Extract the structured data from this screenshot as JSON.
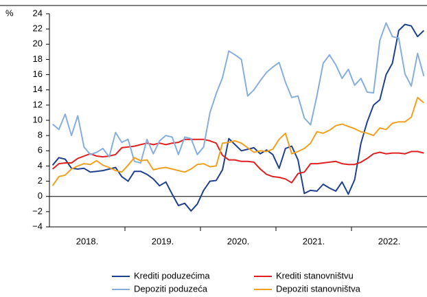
{
  "chart_data": {
    "type": "line",
    "y_label": "%",
    "years": [
      "2018.",
      "2019.",
      "2020.",
      "2021.",
      "2022."
    ],
    "ylim": [
      -4,
      24
    ],
    "yticks": [
      {
        "value": -4,
        "label": "−4"
      },
      {
        "value": -2,
        "label": "−2"
      },
      0,
      2,
      4,
      6,
      8,
      10,
      12,
      14,
      16,
      18,
      20,
      22,
      24
    ],
    "series": [
      {
        "name": "Krediti poduzećima",
        "color": "#1f3f8f",
        "values": [
          4.1,
          5.1,
          4.9,
          3.7,
          3.6,
          3.7,
          3.2,
          3.3,
          3.4,
          3.6,
          3.8,
          2.6,
          2.0,
          3.3,
          3.3,
          2.9,
          2.3,
          1.4,
          1.9,
          0.3,
          -1.2,
          -0.9,
          -1.9,
          -1.0,
          0.8,
          2.0,
          2.1,
          3.5,
          7.6,
          6.8,
          6.0,
          6.2,
          6.4,
          5.6,
          6.1,
          5.5,
          3.7,
          6.3,
          6.6,
          4.8,
          0.4,
          0.8,
          0.7,
          1.6,
          1.1,
          0.7,
          1.9,
          0.3,
          2.2,
          7.0,
          9.8,
          12.0,
          12.7,
          16.0,
          17.5,
          21.8,
          22.6,
          22.4,
          21.0,
          21.8
        ]
      },
      {
        "name": "Krediti stanovništvu",
        "color": "#e02020",
        "values": [
          3.6,
          4.3,
          4.4,
          4.4,
          5.0,
          5.3,
          5.6,
          5.3,
          5.2,
          5.3,
          5.5,
          6.4,
          6.5,
          6.6,
          6.8,
          7.0,
          6.8,
          7.0,
          6.8,
          7.0,
          7.1,
          7.5,
          7.5,
          7.5,
          7.5,
          7.3,
          7.0,
          5.4,
          4.8,
          4.8,
          4.6,
          4.6,
          4.5,
          3.6,
          2.9,
          2.6,
          2.5,
          2.3,
          1.8,
          3.0,
          3.2,
          4.3,
          4.3,
          4.4,
          4.5,
          4.6,
          4.3,
          4.2,
          4.2,
          4.5,
          5.0,
          5.6,
          5.8,
          5.6,
          5.7,
          5.7,
          5.6,
          5.9,
          5.9,
          5.7
        ]
      },
      {
        "name": "Depoziti poduzeća",
        "color": "#86aedc",
        "values": [
          9.5,
          8.8,
          10.8,
          8.0,
          10.6,
          6.5,
          5.5,
          5.8,
          6.3,
          5.2,
          8.4,
          7.1,
          7.5,
          4.6,
          4.4,
          7.5,
          5.6,
          7.3,
          8.0,
          7.8,
          5.5,
          7.8,
          7.6,
          5.5,
          6.5,
          11.0,
          13.5,
          15.6,
          19.1,
          18.6,
          18.0,
          13.2,
          14.0,
          15.2,
          16.3,
          17.0,
          17.6,
          15.0,
          13.0,
          13.2,
          10.3,
          9.4,
          13.2,
          17.5,
          18.6,
          17.3,
          15.5,
          16.7,
          14.6,
          15.5,
          13.7,
          13.6,
          20.5,
          22.8,
          21.0,
          20.8,
          16.1,
          14.5,
          18.8,
          15.8
        ]
      },
      {
        "name": "Depoziti stanovništva",
        "color": "#f0a020",
        "values": [
          1.4,
          2.6,
          2.8,
          3.6,
          4.0,
          4.3,
          4.2,
          4.7,
          4.1,
          3.8,
          3.4,
          3.2,
          4.1,
          5.1,
          4.7,
          4.8,
          3.5,
          3.7,
          3.8,
          3.6,
          3.4,
          3.2,
          3.6,
          4.2,
          4.3,
          3.9,
          4.0,
          7.0,
          7.1,
          7.3,
          7.0,
          6.4,
          5.8,
          6.0,
          5.9,
          6.2,
          7.5,
          8.3,
          5.6,
          5.9,
          6.3,
          7.0,
          8.5,
          8.3,
          8.7,
          9.3,
          9.5,
          9.2,
          8.9,
          8.5,
          8.3,
          8.0,
          9.0,
          8.8,
          9.6,
          9.8,
          9.8,
          10.4,
          13.0,
          12.3
        ]
      }
    ]
  }
}
